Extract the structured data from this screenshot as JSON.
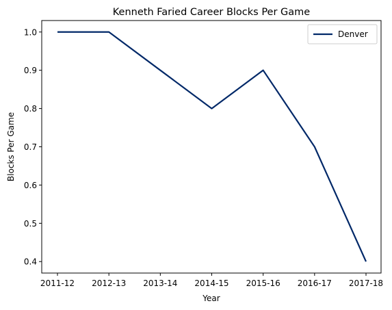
{
  "chart_data": {
    "type": "line",
    "title": "Kenneth Faried Career Blocks Per Game",
    "xlabel": "Year",
    "ylabel": "Blocks Per Game",
    "categories": [
      "2011-12",
      "2012-13",
      "2013-14",
      "2014-15",
      "2015-16",
      "2016-17",
      "2017-18"
    ],
    "series": [
      {
        "name": "Denver",
        "values": [
          1.0,
          1.0,
          0.9,
          0.8,
          0.9,
          0.7,
          0.4
        ],
        "color": "#002868"
      }
    ],
    "ylim": [
      0.37,
      1.03
    ],
    "yticks": [
      0.4,
      0.5,
      0.6,
      0.7,
      0.8,
      0.9,
      1.0
    ],
    "ytick_labels": [
      "0.4",
      "0.5",
      "0.6",
      "0.7",
      "0.8",
      "0.9",
      "1.0"
    ],
    "grid": false,
    "legend_position": "upper right"
  }
}
